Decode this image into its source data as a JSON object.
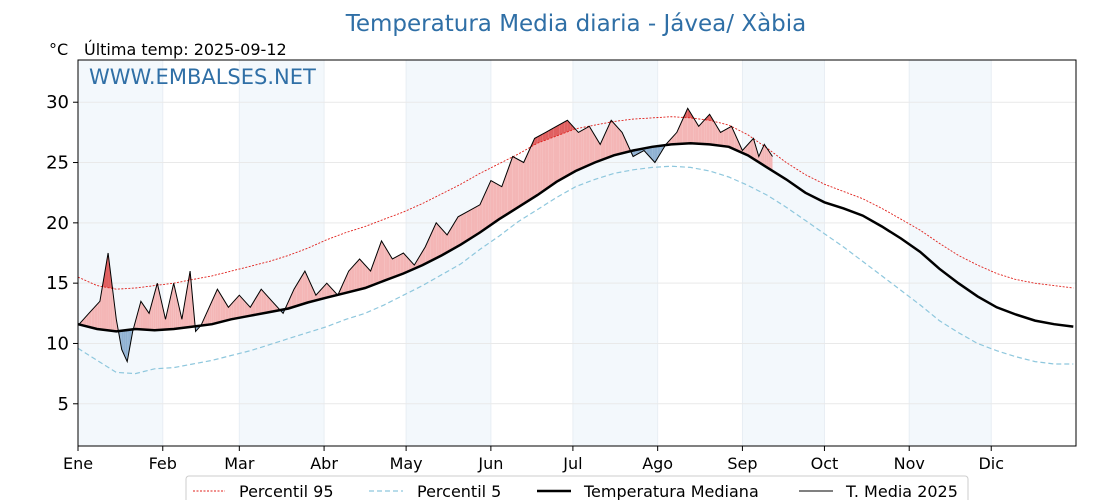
{
  "chart_data": {
    "type": "line",
    "title": "Temperatura Media diaria - Jávea/ Xàbia",
    "unit_label": "°C",
    "subtitle": "Última temp: 2025-09-12",
    "watermark": "WWW.EMBALSES.NET",
    "ylim": [
      1.5,
      33.5
    ],
    "yticks": [
      5,
      10,
      15,
      20,
      25,
      30
    ],
    "xlim": [
      1,
      366
    ],
    "months": [
      {
        "label": "Ene",
        "start": 1,
        "shaded": true
      },
      {
        "label": "Feb",
        "start": 32,
        "shaded": false
      },
      {
        "label": "Mar",
        "start": 60,
        "shaded": true
      },
      {
        "label": "Abr",
        "start": 91,
        "shaded": false
      },
      {
        "label": "May",
        "start": 121,
        "shaded": true
      },
      {
        "label": "Jun",
        "start": 152,
        "shaded": false
      },
      {
        "label": "Jul",
        "start": 182,
        "shaded": true
      },
      {
        "label": "Ago",
        "start": 213,
        "shaded": false
      },
      {
        "label": "Sep",
        "start": 244,
        "shaded": true
      },
      {
        "label": "Oct",
        "start": 274,
        "shaded": false
      },
      {
        "label": "Nov",
        "start": 305,
        "shaded": true
      },
      {
        "label": "Dic",
        "start": 335,
        "shaded": false
      }
    ],
    "grid": true,
    "legend_position": "bottom-center",
    "legend": {
      "p95": "Percentil 95",
      "p5": "Percentil 5",
      "median": "Temperatura Mediana",
      "current": "T. Media 2025"
    },
    "colors": {
      "title": "#2f6fa6",
      "p95": "#e0201b",
      "p5": "#8ec7dd",
      "median": "#000000",
      "current": "#000000",
      "above_fill": "#f4b6b6",
      "above_fill_strong": "#e06060",
      "below_fill": "#8fb1d2",
      "below_fill_strong": "#3a6fa0",
      "month_shade": "#f3f8fc"
    },
    "series": {
      "median": {
        "days": [
          1,
          8,
          15,
          22,
          29,
          36,
          43,
          50,
          57,
          64,
          71,
          78,
          85,
          92,
          99,
          106,
          113,
          120,
          127,
          134,
          141,
          148,
          155,
          162,
          169,
          176,
          183,
          190,
          197,
          204,
          211,
          218,
          225,
          232,
          239,
          246,
          253,
          260,
          267,
          274,
          281,
          288,
          295,
          302,
          309,
          316,
          323,
          330,
          337,
          344,
          351,
          358,
          365
        ],
        "values": [
          11.6,
          11.2,
          11.0,
          11.2,
          11.1,
          11.2,
          11.4,
          11.6,
          12.0,
          12.3,
          12.6,
          12.9,
          13.4,
          13.8,
          14.2,
          14.6,
          15.2,
          15.8,
          16.5,
          17.3,
          18.2,
          19.2,
          20.3,
          21.3,
          22.3,
          23.4,
          24.3,
          25.0,
          25.6,
          26.0,
          26.3,
          26.5,
          26.6,
          26.5,
          26.3,
          25.6,
          24.6,
          23.6,
          22.5,
          21.7,
          21.2,
          20.6,
          19.7,
          18.7,
          17.6,
          16.2,
          15.0,
          13.9,
          13.0,
          12.4,
          11.9,
          11.6,
          11.4
        ]
      },
      "p95": {
        "days": [
          1,
          8,
          15,
          22,
          29,
          36,
          43,
          50,
          57,
          64,
          71,
          78,
          85,
          92,
          99,
          106,
          113,
          120,
          127,
          134,
          141,
          148,
          155,
          162,
          169,
          176,
          183,
          190,
          197,
          204,
          211,
          218,
          225,
          232,
          239,
          246,
          253,
          260,
          267,
          274,
          281,
          288,
          295,
          302,
          309,
          316,
          323,
          330,
          337,
          344,
          351,
          358,
          365
        ],
        "values": [
          15.5,
          14.8,
          14.5,
          14.6,
          14.8,
          15.0,
          15.3,
          15.6,
          16.0,
          16.4,
          16.8,
          17.3,
          17.9,
          18.6,
          19.2,
          19.7,
          20.3,
          20.9,
          21.6,
          22.4,
          23.2,
          24.1,
          24.9,
          25.7,
          26.6,
          27.2,
          27.8,
          28.1,
          28.4,
          28.6,
          28.7,
          28.8,
          28.7,
          28.5,
          28.1,
          27.3,
          26.2,
          25.0,
          24.0,
          23.2,
          22.6,
          22.0,
          21.2,
          20.3,
          19.4,
          18.3,
          17.3,
          16.5,
          15.8,
          15.3,
          15.0,
          14.8,
          14.6
        ]
      },
      "p5": {
        "days": [
          1,
          8,
          15,
          22,
          29,
          36,
          43,
          50,
          57,
          64,
          71,
          78,
          85,
          92,
          99,
          106,
          113,
          120,
          127,
          134,
          141,
          148,
          155,
          162,
          169,
          176,
          183,
          190,
          197,
          204,
          211,
          218,
          225,
          232,
          239,
          246,
          253,
          260,
          267,
          274,
          281,
          288,
          295,
          302,
          309,
          316,
          323,
          330,
          337,
          344,
          351,
          358,
          365
        ],
        "values": [
          9.6,
          8.6,
          7.6,
          7.5,
          7.9,
          8.0,
          8.3,
          8.6,
          9.0,
          9.4,
          9.9,
          10.4,
          10.9,
          11.4,
          12.0,
          12.5,
          13.2,
          14.0,
          14.8,
          15.7,
          16.6,
          17.8,
          18.9,
          20.1,
          21.1,
          22.1,
          23.0,
          23.6,
          24.1,
          24.4,
          24.6,
          24.7,
          24.6,
          24.3,
          23.8,
          23.1,
          22.3,
          21.3,
          20.2,
          19.1,
          18.0,
          16.8,
          15.6,
          14.4,
          13.2,
          11.9,
          10.9,
          10.0,
          9.4,
          8.9,
          8.5,
          8.3,
          8.3
        ]
      },
      "current": {
        "days": [
          1,
          5,
          9,
          12,
          15,
          17,
          19,
          21,
          24,
          27,
          30,
          33,
          36,
          39,
          42,
          44,
          46,
          49,
          52,
          56,
          60,
          64,
          68,
          72,
          76,
          80,
          84,
          88,
          92,
          96,
          100,
          104,
          108,
          112,
          116,
          120,
          124,
          128,
          132,
          136,
          140,
          144,
          148,
          152,
          156,
          160,
          164,
          168,
          172,
          176,
          180,
          184,
          188,
          192,
          196,
          200,
          204,
          208,
          212,
          216,
          220,
          224,
          228,
          232,
          236,
          240,
          244,
          248,
          250,
          252,
          255
        ],
        "values": [
          11.5,
          12.5,
          13.5,
          17.5,
          12.0,
          9.5,
          8.5,
          11.0,
          13.5,
          12.5,
          15.0,
          12.0,
          15.0,
          12.0,
          16.0,
          11.0,
          11.5,
          13.0,
          14.5,
          13.0,
          14.0,
          13.0,
          14.5,
          13.5,
          12.5,
          14.5,
          16.0,
          14.0,
          15.0,
          14.0,
          16.0,
          17.0,
          16.0,
          18.5,
          17.0,
          17.5,
          16.5,
          18.0,
          20.0,
          19.0,
          20.5,
          21.0,
          21.5,
          23.5,
          23.0,
          25.5,
          25.0,
          27.0,
          27.5,
          28.0,
          28.5,
          27.5,
          28.0,
          26.5,
          28.5,
          27.5,
          25.5,
          26.0,
          25.0,
          26.5,
          27.5,
          29.5,
          28.0,
          29.0,
          27.5,
          28.0,
          26.0,
          27.0,
          25.5,
          26.5,
          25.5
        ]
      }
    }
  }
}
